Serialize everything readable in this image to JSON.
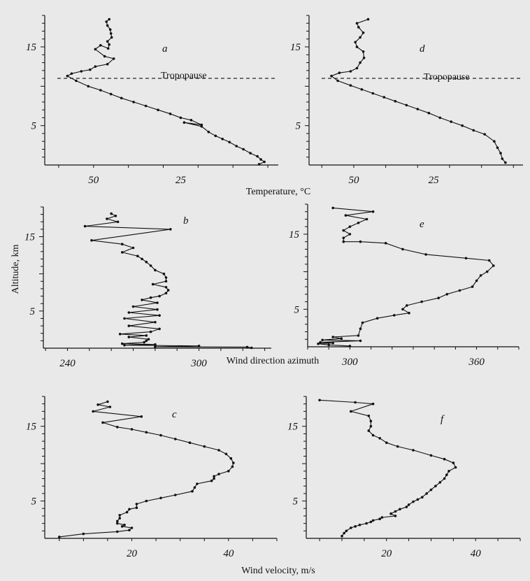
{
  "figure": {
    "shared_labels": {
      "temperature": "Temperature, °C",
      "wind_direction": "Wind direction azimuth",
      "wind_velocity": "Wind velocity, m/s",
      "altitude": "Altitude, km"
    }
  },
  "chart_data": [
    {
      "panel": "a",
      "type": "line",
      "xlabel": "Temperature, °C",
      "ylabel": "Altitude, km",
      "x_axis_reversed": true,
      "xlim": [
        64,
        -3
      ],
      "xticks": [
        50,
        25
      ],
      "ylim": [
        0,
        19
      ],
      "yticks": [
        5,
        15
      ],
      "grid": false,
      "annotation": {
        "label": "Tropopause",
        "y": 11.0
      },
      "x": [
        45.5,
        46.3,
        46.0,
        45.2,
        45.0,
        44.8,
        46.0,
        45.5,
        45.8,
        48.0,
        49.5,
        46.8,
        44.2,
        46.0,
        49.5,
        51.0,
        53.5,
        56.3,
        57.5,
        55.0,
        51.5,
        48.0,
        45.0,
        42.0,
        38.5,
        35.0,
        31.5,
        28.0,
        25.0,
        22.0,
        19.0,
        24.0,
        19.0,
        17.0,
        15.0,
        13.0,
        11.0,
        9.0,
        7.0,
        5.0,
        3.0,
        2.0,
        1.0,
        2.5
      ],
      "y": [
        18.5,
        18.2,
        17.7,
        17.2,
        16.7,
        16.2,
        15.7,
        15.3,
        14.8,
        15.2,
        14.7,
        13.8,
        13.5,
        12.8,
        12.5,
        12.1,
        11.9,
        11.6,
        11.3,
        10.7,
        10.0,
        9.5,
        9.0,
        8.5,
        8.0,
        7.5,
        7.0,
        6.5,
        6.0,
        5.7,
        5.1,
        5.4,
        4.9,
        4.2,
        3.7,
        3.3,
        2.9,
        2.4,
        2.0,
        1.5,
        1.1,
        0.7,
        0.4,
        0.1
      ]
    },
    {
      "panel": "d",
      "type": "line",
      "xlabel": "Temperature, °C",
      "ylabel": "Altitude, km",
      "x_axis_reversed": true,
      "xlim": [
        64,
        -3
      ],
      "xticks": [
        50,
        25
      ],
      "ylim": [
        0,
        19
      ],
      "yticks": [
        5,
        15
      ],
      "grid": false,
      "annotation": {
        "label": "Tropopause",
        "y": 11.0
      },
      "x": [
        45.5,
        49.0,
        48.5,
        47.0,
        48.0,
        49.5,
        49.0,
        47.0,
        46.8,
        48.0,
        49.0,
        51.0,
        54.5,
        57.0,
        55.0,
        51.0,
        47.5,
        44.0,
        40.5,
        37.0,
        33.5,
        30.0,
        26.5,
        23.0,
        19.5,
        16.0,
        12.5,
        9.0,
        6.0,
        5.0,
        4.0,
        3.5,
        2.5
      ],
      "y": [
        18.5,
        18.0,
        17.5,
        16.8,
        16.2,
        15.6,
        15.0,
        14.4,
        13.6,
        13.0,
        12.3,
        11.9,
        11.7,
        11.3,
        10.7,
        10.1,
        9.6,
        9.1,
        8.6,
        8.1,
        7.6,
        7.1,
        6.6,
        6.0,
        5.5,
        5.0,
        4.4,
        3.9,
        3.0,
        2.2,
        1.5,
        0.8,
        0.3
      ]
    },
    {
      "panel": "b",
      "type": "line",
      "xlabel": "Wind direction azimuth",
      "ylabel": "Altitude, km",
      "xlim": [
        229,
        333
      ],
      "xticks": [
        240,
        300
      ],
      "ylim": [
        0,
        19
      ],
      "yticks": [
        5,
        15
      ],
      "grid": false,
      "x": [
        260.0,
        262.0,
        258.0,
        263.0,
        248.0,
        287.0,
        251.0,
        265.0,
        270.0,
        265.0,
        272.0,
        274.0,
        276.0,
        278.0,
        280.0,
        284.0,
        285.0,
        285.0,
        279.0,
        285.0,
        286.0,
        285.0,
        282.0,
        278.0,
        274.0,
        281.0,
        270.0,
        281.0,
        268.0,
        282.0,
        266.0,
        280.0,
        268.0,
        282.0,
        278.0,
        264.0,
        276.0,
        268.0,
        277.0,
        276.0,
        275.0,
        265.0,
        280.0,
        266.0,
        300.0,
        280.0,
        322.0,
        324.0
      ],
      "y": [
        18.1,
        17.8,
        17.4,
        17.0,
        16.4,
        16.0,
        14.5,
        14.0,
        13.5,
        12.9,
        12.4,
        12.0,
        11.6,
        11.1,
        10.5,
        10.0,
        9.5,
        9.0,
        8.6,
        8.2,
        7.8,
        7.4,
        7.0,
        6.8,
        6.5,
        6.1,
        5.6,
        5.2,
        4.8,
        4.4,
        4.0,
        3.5,
        3.0,
        2.6,
        2.2,
        1.9,
        1.7,
        1.5,
        1.2,
        1.0,
        0.8,
        0.6,
        0.5,
        0.4,
        0.3,
        0.2,
        0.15,
        0.05
      ]
    },
    {
      "panel": "e",
      "type": "line",
      "xlabel": "Wind direction azimuth",
      "ylabel": "Altitude, km",
      "xlim": [
        280,
        380
      ],
      "xticks": [
        300,
        360
      ],
      "ylim": [
        0,
        19
      ],
      "yticks": [
        5,
        15
      ],
      "grid": false,
      "x": [
        292.0,
        311.0,
        298.0,
        308.0,
        304.0,
        300.0,
        297.0,
        300.0,
        297.0,
        297.0,
        305.0,
        317.0,
        325.0,
        336.0,
        355.0,
        366.0,
        368.0,
        365.0,
        362.0,
        360.0,
        358.0,
        352.0,
        346.0,
        342.0,
        334.0,
        327.0,
        325.0,
        328.0,
        321.0,
        313.0,
        306.0,
        305.0,
        304.0,
        292.0,
        296.0,
        287.0,
        305.0,
        286.0,
        292.0,
        285.0,
        290.0,
        300.0
      ],
      "y": [
        18.5,
        18.0,
        17.5,
        17.0,
        16.5,
        16.0,
        15.5,
        15.0,
        14.5,
        14.0,
        14.0,
        13.8,
        13.0,
        12.3,
        11.8,
        11.5,
        10.8,
        10.0,
        9.5,
        8.8,
        8.0,
        7.5,
        7.0,
        6.5,
        6.0,
        5.5,
        5.0,
        4.5,
        4.2,
        3.8,
        3.2,
        2.4,
        1.5,
        1.3,
        1.1,
        0.9,
        0.8,
        0.6,
        0.5,
        0.4,
        0.25,
        0.1
      ]
    },
    {
      "panel": "c",
      "type": "line",
      "xlabel": "Wind velocity, m/s",
      "ylabel": "Altitude, km",
      "xlim": [
        2,
        50
      ],
      "xticks": [
        20,
        40
      ],
      "ylim": [
        0,
        19
      ],
      "yticks": [
        5,
        15
      ],
      "grid": false,
      "x": [
        15.0,
        13.0,
        15.5,
        12.0,
        22.0,
        14.0,
        17.0,
        20.0,
        23.0,
        26.0,
        29.0,
        32.0,
        35.0,
        38.0,
        39.5,
        40.5,
        41.0,
        40.8,
        40.0,
        38.0,
        37.0,
        37.0,
        36.5,
        33.5,
        33.0,
        32.5,
        29.0,
        26.0,
        23.0,
        21.0,
        21.0,
        19.5,
        19.0,
        17.5,
        17.5,
        17.0,
        17.0,
        18.5,
        18.0,
        20.0,
        19.5,
        17.0,
        10.0,
        5.0
      ],
      "y": [
        18.3,
        17.9,
        17.6,
        17.0,
        16.3,
        15.5,
        14.9,
        14.6,
        14.2,
        13.8,
        13.3,
        12.8,
        12.3,
        11.8,
        11.3,
        10.7,
        10.1,
        9.6,
        9.0,
        8.6,
        8.3,
        8.0,
        7.7,
        7.3,
        6.8,
        6.3,
        5.8,
        5.4,
        5.0,
        4.6,
        4.1,
        3.9,
        3.5,
        3.1,
        2.7,
        2.3,
        2.0,
        1.8,
        1.6,
        1.4,
        1.1,
        0.9,
        0.6,
        0.2
      ]
    },
    {
      "panel": "f",
      "type": "line",
      "xlabel": "Wind velocity, m/s",
      "ylabel": "Altitude, km",
      "xlim": [
        2,
        50
      ],
      "xticks": [
        20,
        40
      ],
      "ylim": [
        0,
        19
      ],
      "yticks": [
        5,
        15
      ],
      "grid": false,
      "x": [
        5.0,
        13.0,
        17.0,
        12.0,
        16.0,
        16.5,
        16.5,
        16.0,
        17.0,
        18.5,
        20.0,
        22.5,
        26.0,
        30.0,
        33.0,
        35.0,
        35.5,
        34.0,
        33.5,
        33.0,
        32.0,
        31.0,
        30.0,
        29.0,
        28.0,
        27.0,
        26.0,
        25.0,
        24.5,
        23.0,
        22.0,
        21.0,
        22.0,
        19.0,
        18.5,
        17.0,
        16.5,
        15.5,
        14.0,
        13.0,
        12.0,
        11.0,
        10.5,
        10.0
      ],
      "y": [
        18.5,
        18.2,
        18.0,
        17.0,
        16.4,
        15.7,
        15.0,
        14.4,
        13.8,
        13.4,
        12.8,
        12.3,
        11.8,
        11.1,
        10.6,
        10.1,
        9.5,
        9.0,
        8.5,
        8.0,
        7.5,
        7.0,
        6.5,
        6.0,
        5.5,
        5.2,
        4.9,
        4.5,
        4.2,
        3.9,
        3.6,
        3.3,
        3.0,
        2.8,
        2.6,
        2.4,
        2.2,
        2.0,
        1.8,
        1.6,
        1.4,
        1.0,
        0.7,
        0.3
      ]
    }
  ]
}
